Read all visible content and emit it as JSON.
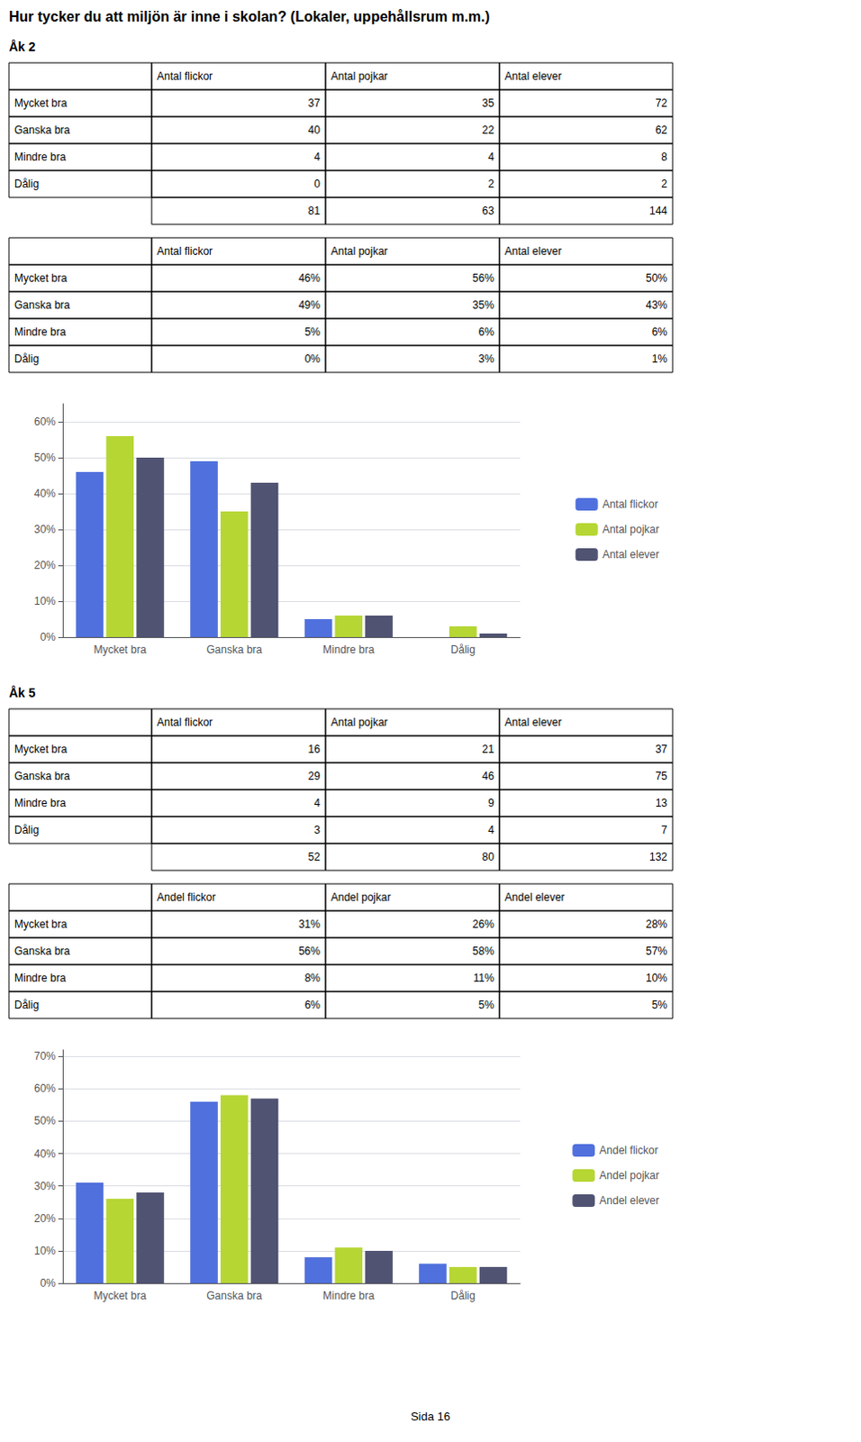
{
  "title": "Hur tycker du att miljön är inne i skolan? (Lokaler, uppehållsrum m.m.)",
  "annotations": [
    "Sida 16"
  ],
  "chart_data": [
    {
      "type": "table",
      "subtitle": "Åk 2",
      "categories": [
        "Mycket bra",
        "Ganska bra",
        "Mindre bra",
        "Dålig",
        null
      ],
      "series": [
        {
          "name": "Antal flickor",
          "values": [
            37,
            40,
            4,
            0,
            81
          ]
        },
        {
          "name": "Antal pojkar",
          "values": [
            35,
            22,
            4,
            2,
            63
          ]
        },
        {
          "name": "Antal elever",
          "values": [
            72,
            62,
            8,
            2,
            144
          ]
        }
      ]
    },
    {
      "type": "table",
      "categories": [
        "Mycket bra",
        "Ganska bra",
        "Mindre bra",
        "Dålig"
      ],
      "series": [
        {
          "name": "Antal flickor",
          "values": [
            46,
            49,
            5,
            0
          ],
          "value_labels": [
            "46%",
            "49%",
            "5%",
            "0%"
          ]
        },
        {
          "name": "Antal pojkar",
          "values": [
            56,
            35,
            6,
            3
          ],
          "value_labels": [
            "56%",
            "35%",
            "6%",
            "3%"
          ]
        },
        {
          "name": "Antal elever",
          "values": [
            50,
            43,
            6,
            1
          ],
          "value_labels": [
            "50%",
            "43%",
            "6%",
            "1%"
          ]
        }
      ]
    },
    {
      "type": "bar",
      "categories": [
        "Mycket bra",
        "Ganska bra",
        "Mindre bra",
        "Dålig"
      ],
      "series": [
        {
          "name": "Antal flickor",
          "values": [
            0.46,
            0.49,
            0.05,
            0.0
          ]
        },
        {
          "name": "Antal pojkar",
          "values": [
            0.56,
            0.35,
            0.06,
            0.03
          ]
        },
        {
          "name": "Antal elever",
          "values": [
            0.5,
            0.43,
            0.06,
            0.01
          ]
        }
      ],
      "ylim": [
        0,
        0.65
      ],
      "yticks": [
        {
          "value": 0,
          "label": "0%"
        },
        {
          "value": 0.1,
          "label": "10%"
        },
        {
          "value": 0.2,
          "label": "20%"
        },
        {
          "value": 0.3,
          "label": "30%"
        },
        {
          "value": 0.4,
          "label": "40%"
        },
        {
          "value": 0.5,
          "label": "50%"
        },
        {
          "value": 0.6,
          "label": "60%"
        }
      ],
      "grid": true,
      "legend": "right"
    },
    {
      "type": "table",
      "subtitle": "Åk 5",
      "categories": [
        "Mycket bra",
        "Ganska bra",
        "Mindre bra",
        "Dålig",
        null
      ],
      "series": [
        {
          "name": "Antal flickor",
          "values": [
            16,
            29,
            4,
            3,
            52
          ]
        },
        {
          "name": "Antal pojkar",
          "values": [
            21,
            46,
            9,
            4,
            80
          ]
        },
        {
          "name": "Antal elever",
          "values": [
            37,
            75,
            13,
            7,
            132
          ]
        }
      ]
    },
    {
      "type": "table",
      "categories": [
        "Mycket bra",
        "Ganska bra",
        "Mindre bra",
        "Dålig"
      ],
      "series": [
        {
          "name": "Andel flickor",
          "values": [
            31,
            56,
            8,
            6
          ],
          "value_labels": [
            "31%",
            "56%",
            "8%",
            "6%"
          ]
        },
        {
          "name": "Andel pojkar",
          "values": [
            26,
            58,
            11,
            5
          ],
          "value_labels": [
            "26%",
            "58%",
            "11%",
            "5%"
          ]
        },
        {
          "name": "Andel elever",
          "values": [
            28,
            57,
            10,
            5
          ],
          "value_labels": [
            "28%",
            "57%",
            "10%",
            "5%"
          ]
        }
      ]
    },
    {
      "type": "bar",
      "categories": [
        "Mycket bra",
        "Ganska bra",
        "Mindre bra",
        "Dålig"
      ],
      "series": [
        {
          "name": "Andel flickor",
          "values": [
            0.31,
            0.56,
            0.08,
            0.06
          ]
        },
        {
          "name": "Andel pojkar",
          "values": [
            0.26,
            0.58,
            0.11,
            0.05
          ]
        },
        {
          "name": "Andel elever",
          "values": [
            0.28,
            0.57,
            0.1,
            0.05
          ]
        }
      ],
      "ylim": [
        0,
        0.72
      ],
      "yticks": [
        {
          "value": 0,
          "label": "0%"
        },
        {
          "value": 0.1,
          "label": "10%"
        },
        {
          "value": 0.2,
          "label": "20%"
        },
        {
          "value": 0.3,
          "label": "30%"
        },
        {
          "value": 0.4,
          "label": "40%"
        },
        {
          "value": 0.5,
          "label": "50%"
        },
        {
          "value": 0.6,
          "label": "60%"
        },
        {
          "value": 0.7,
          "label": "70%"
        }
      ],
      "grid": true,
      "legend": "right"
    }
  ]
}
